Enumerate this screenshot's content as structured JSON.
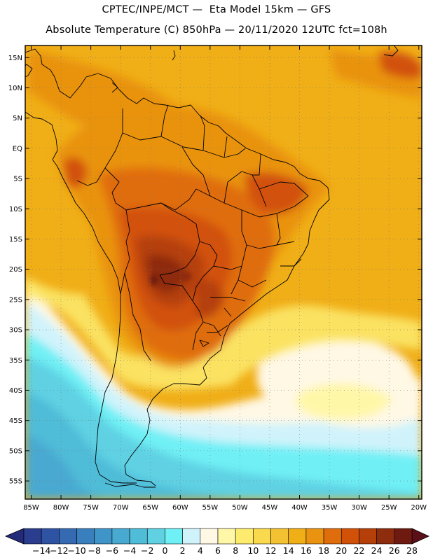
{
  "header": {
    "line1": "CPTEC/INPE/MCT —  Eta Model 15km — GFS",
    "line2": "Absolute Temperature (C) 850hPa — 20/11/2020 12UTC fct=108h"
  },
  "map": {
    "lon_range": [
      -86,
      -19.5
    ],
    "lat_range": [
      -58,
      17
    ],
    "lat_labels": [
      "15N",
      "10N",
      "5N",
      "EQ",
      "5S",
      "10S",
      "15S",
      "20S",
      "25S",
      "30S",
      "35S",
      "40S",
      "45S",
      "50S",
      "55S"
    ],
    "lat_values": [
      15,
      10,
      5,
      0,
      -5,
      -10,
      -15,
      -20,
      -25,
      -30,
      -35,
      -40,
      -45,
      -50,
      -55
    ],
    "lon_labels": [
      "85W",
      "80W",
      "75W",
      "70W",
      "65W",
      "60W",
      "55W",
      "50W",
      "45W",
      "40W",
      "35W",
      "30W",
      "25W",
      "20W"
    ],
    "lon_values": [
      -85,
      -80,
      -75,
      -70,
      -65,
      -60,
      -55,
      -50,
      -45,
      -40,
      -35,
      -30,
      -25,
      -20
    ]
  },
  "colorbar": {
    "labels": [
      "-14",
      "-12",
      "-10",
      "-8",
      "-6",
      "-4",
      "-2",
      "0",
      "2",
      "4",
      "6",
      "8",
      "10",
      "12",
      "14",
      "16",
      "18",
      "20",
      "22",
      "24",
      "26",
      "28"
    ],
    "colors": [
      "#2a3d8f",
      "#2f53a3",
      "#3569b1",
      "#3a7fbd",
      "#3f95c8",
      "#48a9d1",
      "#4fbcd8",
      "#5fd1e3",
      "#6ff0f5",
      "#d0f3fb",
      "#fff8e5",
      "#fff7a8",
      "#fdeb6e",
      "#f9d94d",
      "#f3c233",
      "#f0ae17",
      "#e99311",
      "#e06d0b",
      "#d25108",
      "#b53f09",
      "#8e2c0e",
      "#6e1a10"
    ],
    "under_color": "#232a7a",
    "over_color": "#5c0f18"
  }
}
